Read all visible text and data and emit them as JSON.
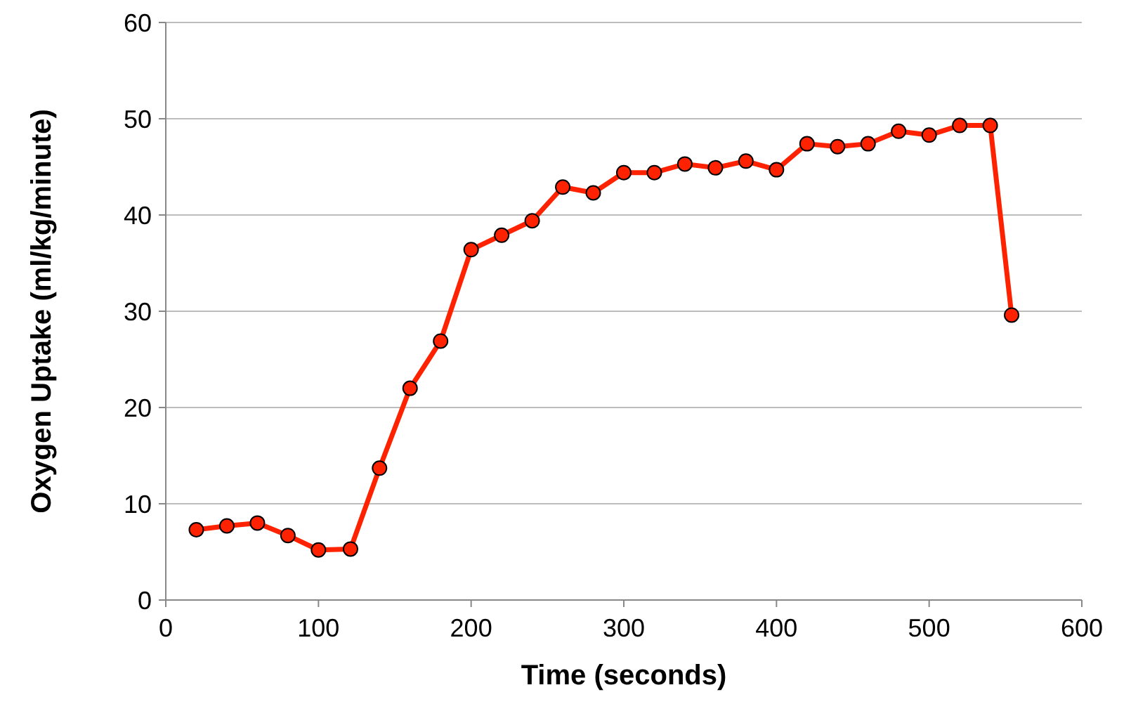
{
  "chart_data": {
    "type": "line",
    "xlabel": "Time (seconds)",
    "ylabel": "Oxygen Uptake (ml/kg/minute)",
    "x": [
      20,
      40,
      60,
      80,
      100,
      121,
      140,
      160,
      180,
      200,
      220,
      240,
      260,
      280,
      300,
      320,
      340,
      360,
      380,
      400,
      420,
      440,
      460,
      480,
      500,
      520,
      540,
      554
    ],
    "series": [
      {
        "color": "#ff2200",
        "values": [
          7.3,
          7.7,
          8.0,
          6.7,
          5.2,
          5.3,
          13.7,
          22.0,
          26.9,
          36.4,
          37.9,
          39.4,
          42.9,
          42.3,
          44.4,
          44.4,
          45.3,
          44.9,
          45.6,
          44.7,
          47.4,
          47.1,
          47.4,
          48.7,
          48.3,
          49.3,
          49.3,
          29.6
        ]
      }
    ],
    "xlim": [
      0,
      600
    ],
    "xticks": [
      0,
      100,
      200,
      300,
      400,
      500,
      600
    ],
    "ylim": [
      0,
      60
    ],
    "yticks": [
      0,
      10,
      20,
      30,
      40,
      50,
      60
    ],
    "grid": "y",
    "marker": "circle",
    "line_style": "solid"
  }
}
